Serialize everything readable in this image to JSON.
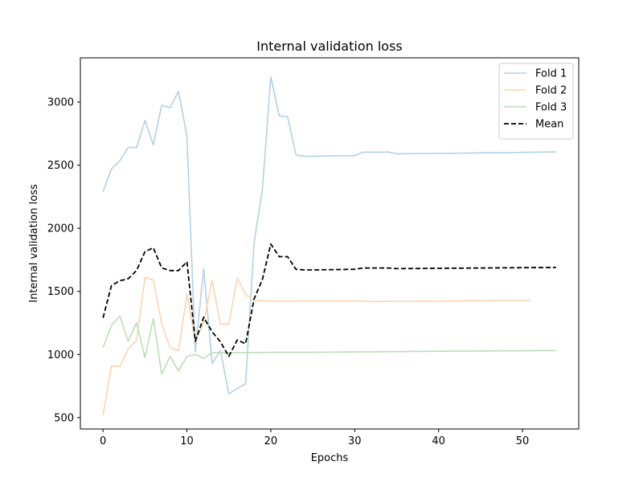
{
  "chart_data": {
    "type": "line",
    "title": "Internal validation loss",
    "xlabel": "Epochs",
    "ylabel": "Internal validation loss",
    "xlim": [
      -2.7,
      56.7
    ],
    "ylim": [
      410,
      3350
    ],
    "xticks": [
      0,
      10,
      20,
      30,
      40,
      50
    ],
    "yticks": [
      500,
      1000,
      1500,
      2000,
      2500,
      3000
    ],
    "legend": "top-right",
    "grid": false,
    "series": [
      {
        "name": "Fold 1",
        "color": "#b3d1e8",
        "style": "solid",
        "x": [
          0,
          1,
          2,
          3,
          4,
          5,
          6,
          7,
          8,
          9,
          10,
          11,
          12,
          13,
          14,
          15,
          16,
          17,
          18,
          19,
          20,
          21,
          22,
          23,
          24,
          25,
          26,
          27,
          28,
          29,
          30,
          31,
          32,
          33,
          34,
          35,
          40,
          45,
          50,
          54
        ],
        "y": [
          2290,
          2470,
          2535,
          2640,
          2640,
          2855,
          2660,
          2975,
          2955,
          3085,
          2730,
          1020,
          1680,
          930,
          1030,
          690,
          730,
          770,
          1885,
          2310,
          3200,
          2890,
          2885,
          2580,
          2570,
          2570,
          2572,
          2573,
          2574,
          2575,
          2575,
          2603,
          2603,
          2603,
          2604,
          2590,
          2593,
          2597,
          2601,
          2605
        ]
      },
      {
        "name": "Fold 2",
        "color": "#fdd5b0",
        "style": "solid",
        "x": [
          0,
          1,
          2,
          3,
          4,
          5,
          6,
          7,
          8,
          9,
          10,
          11,
          12,
          13,
          14,
          15,
          16,
          17,
          18,
          19,
          20,
          25,
          30,
          32,
          35,
          40,
          45,
          51
        ],
        "y": [
          520,
          910,
          905,
          1045,
          1110,
          1610,
          1590,
          1240,
          1055,
          1030,
          1480,
          1100,
          1250,
          1590,
          1240,
          1240,
          1605,
          1475,
          1425,
          1425,
          1423,
          1424,
          1425,
          1420,
          1421,
          1423,
          1426,
          1428
        ]
      },
      {
        "name": "Fold 3",
        "color": "#b9e0b3",
        "style": "solid",
        "x": [
          0,
          1,
          2,
          3,
          4,
          5,
          6,
          7,
          8,
          9,
          10,
          11,
          12,
          13,
          14,
          15,
          16,
          17,
          18,
          20,
          25,
          30,
          35,
          40,
          45,
          50,
          54
        ],
        "y": [
          1055,
          1230,
          1305,
          1105,
          1250,
          975,
          1285,
          845,
          985,
          870,
          985,
          1000,
          970,
          1015,
          1015,
          1015,
          1015,
          1016,
          1016,
          1017,
          1018,
          1020,
          1023,
          1026,
          1028,
          1030,
          1032
        ]
      },
      {
        "name": "Mean",
        "color": "#000000",
        "style": "dashed",
        "x": [
          0,
          1,
          2,
          3,
          4,
          5,
          6,
          7,
          8,
          9,
          10,
          11,
          12,
          13,
          14,
          15,
          16,
          17,
          18,
          19,
          20,
          21,
          22,
          23,
          24,
          25,
          30,
          31,
          32,
          33,
          34,
          35,
          40,
          45,
          50,
          54
        ],
        "y": [
          1290,
          1545,
          1585,
          1600,
          1665,
          1815,
          1845,
          1685,
          1665,
          1665,
          1735,
          1105,
          1295,
          1180,
          1100,
          985,
          1115,
          1085,
          1440,
          1595,
          1875,
          1775,
          1775,
          1675,
          1670,
          1670,
          1675,
          1685,
          1685,
          1685,
          1685,
          1680,
          1683,
          1685,
          1688,
          1690
        ]
      }
    ]
  }
}
